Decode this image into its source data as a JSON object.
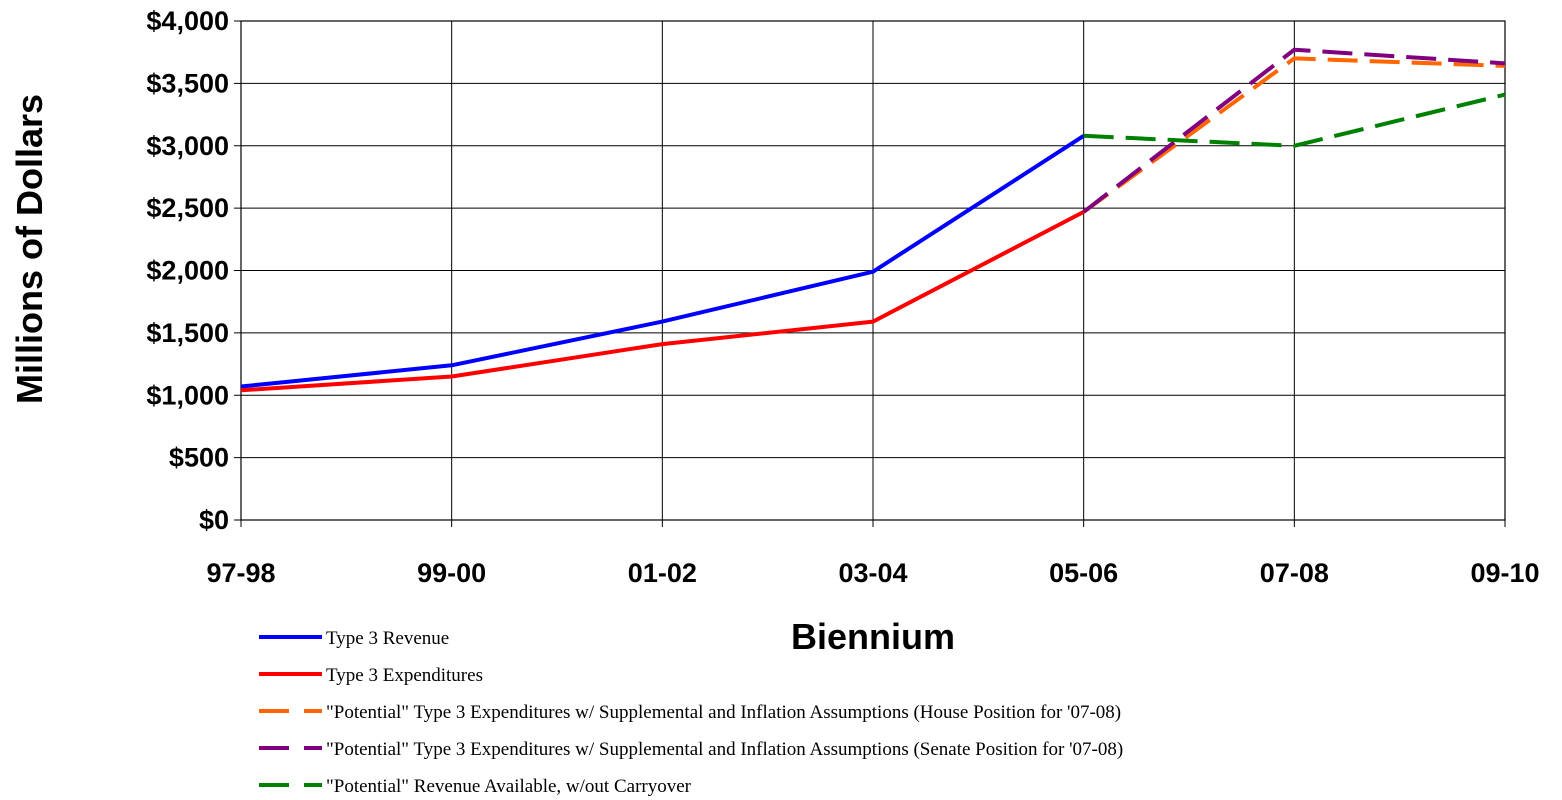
{
  "chart_data": {
    "type": "line",
    "title": "",
    "xlabel": "Biennium",
    "ylabel": "Millions of Dollars",
    "categories": [
      "97-98",
      "99-00",
      "01-02",
      "03-04",
      "05-06",
      "07-08",
      "09-10"
    ],
    "ylim": [
      0,
      4000
    ],
    "y_ticks": [
      0,
      500,
      1000,
      1500,
      2000,
      2500,
      3000,
      3500,
      4000
    ],
    "y_tick_labels": [
      "$0",
      "$500",
      "$1,000",
      "$1,500",
      "$2,000",
      "$2,500",
      "$3,000",
      "$3,500",
      "$4,000"
    ],
    "grid": true,
    "legend_position": "bottom",
    "series": [
      {
        "name": "Type 3 Revenue",
        "color": "#0000FF",
        "dashed": false,
        "values": [
          1070,
          1240,
          1590,
          1990,
          3080,
          null,
          null
        ]
      },
      {
        "name": "Type 3 Expenditures",
        "color": "#FF0000",
        "dashed": false,
        "values": [
          1040,
          1150,
          1410,
          1590,
          2470,
          null,
          null
        ]
      },
      {
        "name": "\"Potential\" Type 3 Expenditures w/ Supplemental and Inflation Assumptions (House Position for '07-08)",
        "color": "#FF6600",
        "dashed": true,
        "values": [
          null,
          null,
          null,
          null,
          2470,
          3700,
          3640
        ]
      },
      {
        "name": "\"Potential\" Type 3 Expenditures w/ Supplemental and Inflation Assumptions (Senate Position for '07-08)",
        "color": "#800080",
        "dashed": true,
        "values": [
          null,
          null,
          null,
          null,
          2470,
          3770,
          3660
        ]
      },
      {
        "name": "\"Potential\" Revenue Available, w/out Carryover",
        "color": "#008000",
        "dashed": true,
        "values": [
          null,
          null,
          null,
          null,
          3080,
          3000,
          3410
        ]
      }
    ]
  }
}
